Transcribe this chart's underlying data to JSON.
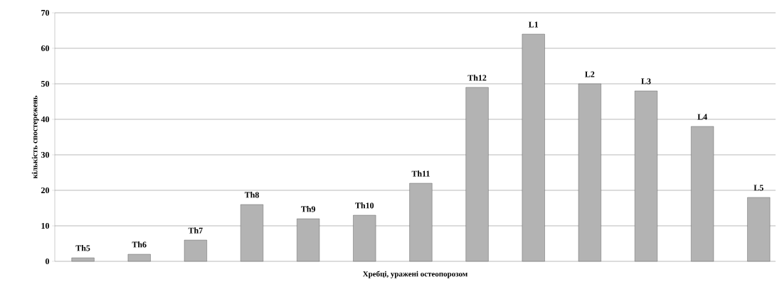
{
  "chart_data": {
    "type": "bar",
    "xlabel": "Хребці, уражені остеопорозом",
    "ylabel": "кількість спостережень",
    "categories": [
      "Th5",
      "Th6",
      "Th7",
      "Th8",
      "Th9",
      "Th10",
      "Th11",
      "Th12",
      "L1",
      "L2",
      "L3",
      "L4",
      "L5"
    ],
    "values": [
      1,
      2,
      6,
      16,
      12,
      13,
      22,
      49,
      64,
      50,
      48,
      38,
      18
    ],
    "color": "#b3b3b3",
    "ylim": [
      0,
      70
    ],
    "yticks": [
      0,
      10,
      20,
      30,
      40,
      50,
      60,
      70
    ],
    "grid": "y"
  }
}
